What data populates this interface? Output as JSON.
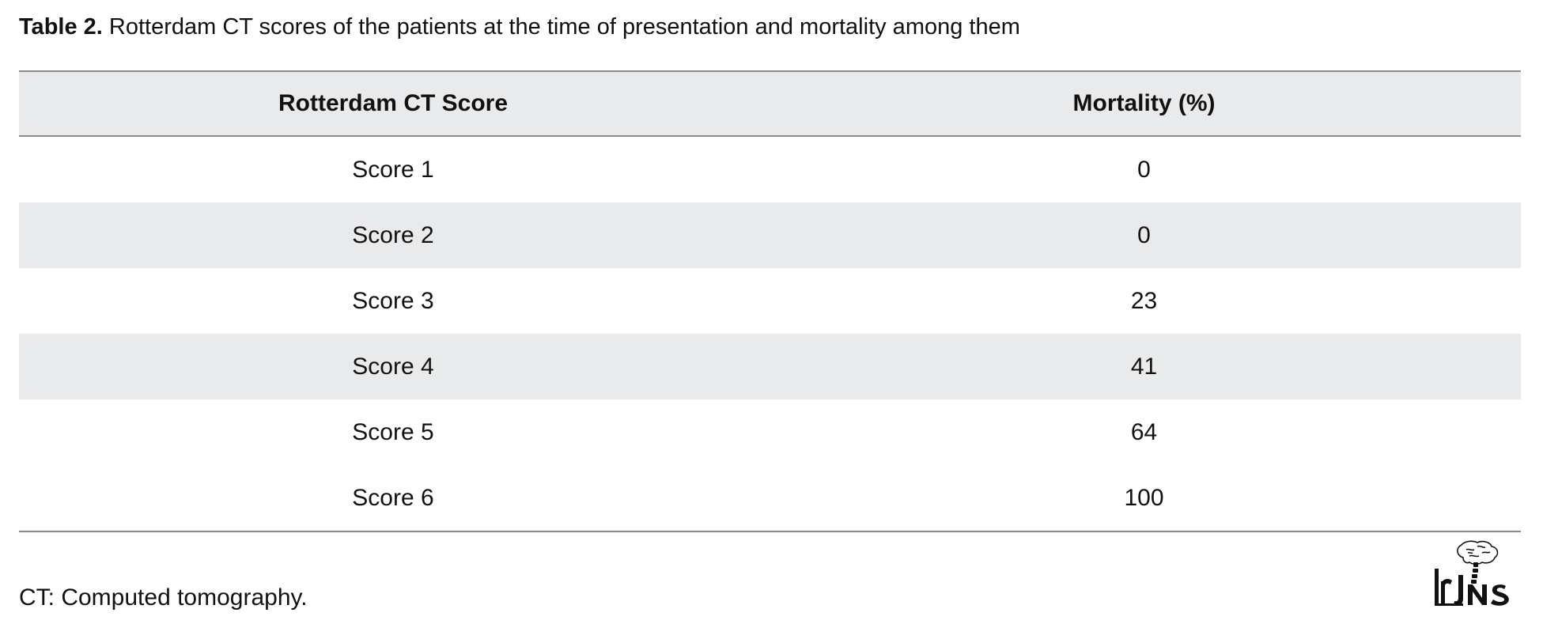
{
  "caption": {
    "label": "Table 2.",
    "text": " Rotterdam CT scores of the patients at the time of presentation and mortality among them"
  },
  "table": {
    "headers": [
      "Rotterdam CT Score",
      "Mortality (%)"
    ],
    "rows": [
      [
        "Score 1",
        "0"
      ],
      [
        "Score 2",
        "0"
      ],
      [
        "Score 3",
        "23"
      ],
      [
        "Score 4",
        "41"
      ],
      [
        "Score 5",
        "64"
      ],
      [
        "Score 6",
        "100"
      ]
    ]
  },
  "footnote": "CT: Computed tomography.",
  "logo": {
    "icon": "brain-spine-logo-icon",
    "text": "IrJNS"
  },
  "colors": {
    "header_shade": "#e9eaec",
    "rule": "#8a8a8a",
    "text": "#111111"
  }
}
